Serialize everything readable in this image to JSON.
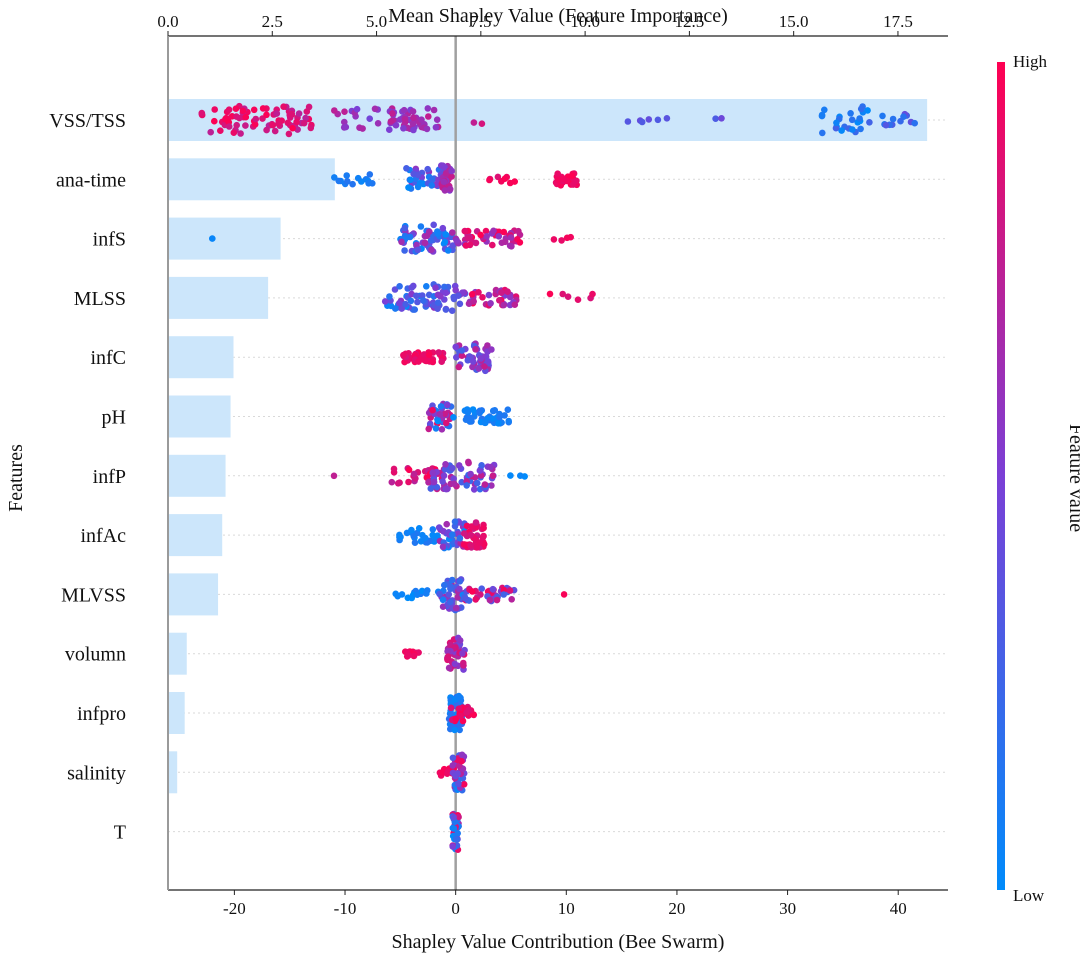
{
  "chart_data": {
    "type": "bar+beeswarm",
    "title": "Mean Shapley Value (Feature Importance)",
    "xlabel": "Shapley Value Contribution (Bee Swarm)",
    "ylabel": "Features",
    "colorbar": {
      "label": "Feature value",
      "high_label": "High",
      "low_label": "Low",
      "high_color": "#ff0052",
      "low_color": "#008bfb"
    },
    "top_axis": {
      "range": [
        0,
        18.7
      ],
      "ticks": [
        0.0,
        2.5,
        5.0,
        7.5,
        10.0,
        12.5,
        15.0,
        17.5
      ],
      "tick_labels": [
        "0.0",
        "2.5",
        "5.0",
        "7.5",
        "10.0",
        "12.5",
        "15.0",
        "17.5"
      ]
    },
    "bottom_axis": {
      "range": [
        -26,
        44.5
      ],
      "ticks": [
        -20,
        -10,
        0,
        10,
        20,
        30,
        40
      ],
      "tick_labels": [
        "-20",
        "-10",
        "0",
        "10",
        "20",
        "30",
        "40"
      ]
    },
    "features": [
      "VSS/TSS",
      "ana-time",
      "infS",
      "MLSS",
      "infC",
      "pH",
      "infP",
      "infAc",
      "MLVSS",
      "volumn",
      "infpro",
      "salinity",
      "T"
    ],
    "mean_shap": [
      18.2,
      4.0,
      2.7,
      2.4,
      1.57,
      1.5,
      1.38,
      1.3,
      1.2,
      0.45,
      0.4,
      0.22,
      0.0
    ],
    "swarm": [
      {
        "feature": "VSS/TSS",
        "groups": [
          {
            "min": -23,
            "max": -13,
            "n": 80,
            "hmin": 0.72,
            "hmax": 1.0,
            "spread": 14
          },
          {
            "min": -11,
            "max": -3,
            "n": 35,
            "hmin": 0.45,
            "hmax": 0.75,
            "spread": 12
          },
          {
            "min": -6,
            "max": -1.5,
            "n": 30,
            "hmin": 0.5,
            "hmax": 0.78,
            "spread": 12
          },
          {
            "min": 1,
            "max": 2.5,
            "n": 2,
            "hmin": 0.65,
            "hmax": 0.85,
            "spread": 4
          },
          {
            "min": 15.5,
            "max": 25,
            "n": 8,
            "hmin": 0.3,
            "hmax": 0.45,
            "spread": 3
          },
          {
            "min": 33,
            "max": 37.5,
            "n": 25,
            "hmin": 0.0,
            "hmax": 0.3,
            "spread": 14
          },
          {
            "min": 38,
            "max": 41.5,
            "n": 12,
            "hmin": 0.05,
            "hmax": 0.45,
            "spread": 6
          }
        ]
      },
      {
        "feature": "ana-time",
        "groups": [
          {
            "min": -11,
            "max": -7.5,
            "n": 14,
            "hmin": 0.0,
            "hmax": 0.15,
            "spread": 5
          },
          {
            "min": -4.5,
            "max": -0.5,
            "n": 45,
            "hmin": 0.0,
            "hmax": 0.6,
            "spread": 11
          },
          {
            "min": -1.3,
            "max": -0.2,
            "n": 28,
            "hmin": 0.5,
            "hmax": 0.8,
            "spread": 14
          },
          {
            "min": 3,
            "max": 5.5,
            "n": 8,
            "hmin": 0.85,
            "hmax": 1.0,
            "spread": 4
          },
          {
            "min": 9,
            "max": 11,
            "n": 30,
            "hmin": 0.9,
            "hmax": 1.0,
            "spread": 6
          }
        ]
      },
      {
        "feature": "infS",
        "groups": [
          {
            "min": -22,
            "max": -22,
            "n": 1,
            "hmin": 0.0,
            "hmax": 0.05,
            "spread": 0
          },
          {
            "min": -5,
            "max": 0,
            "n": 70,
            "hmin": 0.0,
            "hmax": 0.7,
            "spread": 14
          },
          {
            "min": 0,
            "max": 6,
            "n": 50,
            "hmin": 0.55,
            "hmax": 1.0,
            "spread": 8
          },
          {
            "min": 8.5,
            "max": 12,
            "n": 4,
            "hmin": 0.9,
            "hmax": 1.0,
            "spread": 2
          }
        ]
      },
      {
        "feature": "MLSS",
        "groups": [
          {
            "min": -6.5,
            "max": -1,
            "n": 45,
            "hmin": 0.0,
            "hmax": 0.6,
            "spread": 12
          },
          {
            "min": -2,
            "max": 1,
            "n": 30,
            "hmin": 0.2,
            "hmax": 0.6,
            "spread": 14
          },
          {
            "min": 1,
            "max": 5.5,
            "n": 35,
            "hmin": 0.5,
            "hmax": 1.0,
            "spread": 8
          },
          {
            "min": 8,
            "max": 13,
            "n": 6,
            "hmin": 0.85,
            "hmax": 1.0,
            "spread": 4
          }
        ]
      },
      {
        "feature": "infC",
        "groups": [
          {
            "min": -4.8,
            "max": -1,
            "n": 45,
            "hmin": 0.85,
            "hmax": 1.0,
            "spread": 5
          },
          {
            "min": 0,
            "max": 3.3,
            "n": 55,
            "hmin": 0.25,
            "hmax": 0.8,
            "spread": 14
          }
        ]
      },
      {
        "feature": "pH",
        "groups": [
          {
            "min": -2.5,
            "max": -0.2,
            "n": 40,
            "hmin": 0.0,
            "hmax": 1.0,
            "spread": 13
          },
          {
            "min": 0.8,
            "max": 5,
            "n": 40,
            "hmin": 0.0,
            "hmax": 0.15,
            "spread": 7
          }
        ]
      },
      {
        "feature": "infP",
        "groups": [
          {
            "min": -11,
            "max": -11,
            "n": 1,
            "hmin": 0.75,
            "hmax": 0.8,
            "spread": 0
          },
          {
            "min": -6,
            "max": -1,
            "n": 30,
            "hmin": 0.7,
            "hmax": 1.0,
            "spread": 8
          },
          {
            "min": -2.5,
            "max": 3.5,
            "n": 70,
            "hmin": 0.2,
            "hmax": 0.8,
            "spread": 14
          },
          {
            "min": 3,
            "max": 6.5,
            "n": 3,
            "hmin": 0.0,
            "hmax": 0.1,
            "spread": 2
          }
        ]
      },
      {
        "feature": "infAc",
        "groups": [
          {
            "min": -5.5,
            "max": -1.5,
            "n": 25,
            "hmin": 0.0,
            "hmax": 0.15,
            "spread": 8
          },
          {
            "min": -1.5,
            "max": 1,
            "n": 35,
            "hmin": 0.0,
            "hmax": 0.7,
            "spread": 14
          },
          {
            "min": 0.5,
            "max": 2.6,
            "n": 40,
            "hmin": 0.8,
            "hmax": 1.0,
            "spread": 13
          }
        ]
      },
      {
        "feature": "MLVSS",
        "groups": [
          {
            "min": -5.5,
            "max": -1.5,
            "n": 15,
            "hmin": 0.0,
            "hmax": 0.15,
            "spread": 4
          },
          {
            "min": -1.5,
            "max": 0.8,
            "n": 45,
            "hmin": 0.05,
            "hmax": 0.7,
            "spread": 16
          },
          {
            "min": 0.8,
            "max": 5.3,
            "n": 40,
            "hmin": 0.2,
            "hmax": 1.0,
            "spread": 7
          },
          {
            "min": 9.8,
            "max": 9.8,
            "n": 1,
            "hmin": 0.95,
            "hmax": 1.0,
            "spread": 0
          }
        ]
      },
      {
        "feature": "volumn",
        "groups": [
          {
            "min": -4.6,
            "max": -3.2,
            "n": 12,
            "hmin": 0.9,
            "hmax": 1.0,
            "spread": 3
          },
          {
            "min": -0.8,
            "max": 0.9,
            "n": 45,
            "hmin": 0.4,
            "hmax": 0.9,
            "spread": 16
          }
        ]
      },
      {
        "feature": "infpro",
        "groups": [
          {
            "min": -0.6,
            "max": 0.6,
            "n": 55,
            "hmin": 0.0,
            "hmax": 0.25,
            "spread": 17
          },
          {
            "min": -0.6,
            "max": 1.8,
            "n": 25,
            "hmin": 0.85,
            "hmax": 1.0,
            "spread": 8
          }
        ]
      },
      {
        "feature": "salinity",
        "groups": [
          {
            "min": -1.5,
            "max": 0,
            "n": 12,
            "hmin": 0.9,
            "hmax": 1.0,
            "spread": 4
          },
          {
            "min": -0.3,
            "max": 0.8,
            "n": 40,
            "hmin": 0.0,
            "hmax": 1.0,
            "spread": 18
          }
        ]
      },
      {
        "feature": "T",
        "groups": [
          {
            "min": -0.3,
            "max": 0.3,
            "n": 45,
            "hmin": 0.0,
            "hmax": 1.0,
            "spread": 20
          }
        ]
      }
    ]
  }
}
